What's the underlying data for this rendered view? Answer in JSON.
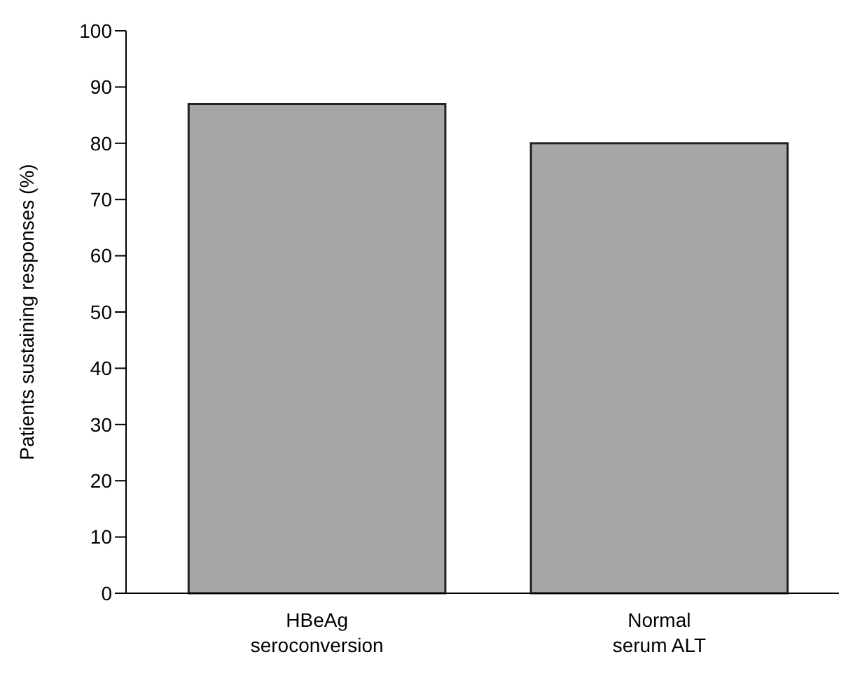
{
  "chart_data": {
    "type": "bar",
    "ylabel": "Patients sustaining responses (%)",
    "categories": [
      "HBeAg\nseroconversion",
      "Normal\nserum ALT"
    ],
    "values": [
      87,
      80
    ],
    "color": "#a6a6a6",
    "ylim": [
      0,
      100
    ],
    "yticks": [
      0,
      10,
      20,
      30,
      40,
      50,
      60,
      70,
      80,
      90,
      100
    ],
    "grid": false
  }
}
